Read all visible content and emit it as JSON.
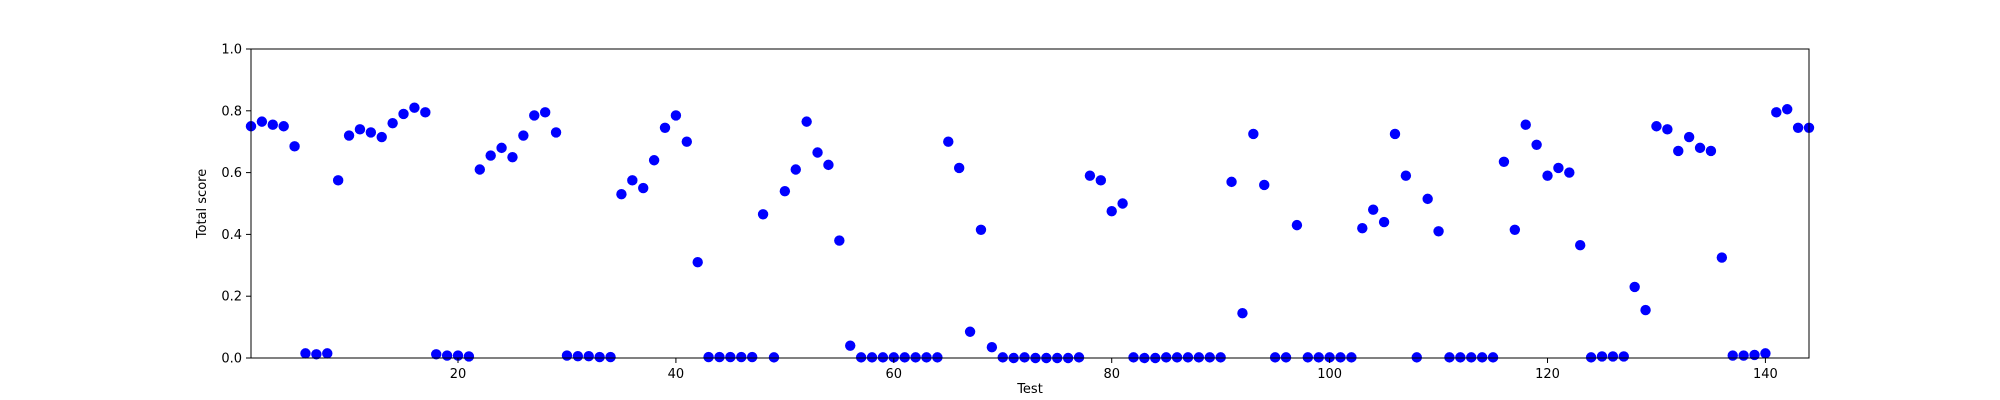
{
  "chart_data": {
    "type": "scatter",
    "title": "",
    "xlabel": "Test",
    "ylabel": "Total score",
    "xlim": [
      1,
      144
    ],
    "ylim": [
      0,
      1.0
    ],
    "xticks": [
      "20",
      "40",
      "60",
      "80",
      "100",
      "120",
      "140"
    ],
    "yticks": [
      "0.0",
      "0.2",
      "0.4",
      "0.6",
      "0.8",
      "1.0"
    ],
    "grid": false,
    "legend": "none",
    "marker_color": "#0000ff",
    "series": [
      {
        "x": [
          1,
          2,
          3,
          4,
          5,
          6,
          7,
          8,
          9,
          10,
          11,
          12,
          13,
          14,
          15,
          16,
          17,
          18,
          19,
          20,
          21,
          22,
          23,
          24,
          25,
          26,
          27,
          28,
          29,
          30,
          31,
          32,
          33,
          34,
          35,
          36,
          37,
          38,
          39,
          40,
          41,
          42,
          43,
          44,
          45,
          46,
          47,
          48,
          49,
          50,
          51,
          52,
          53,
          54,
          55,
          56,
          57,
          58,
          59,
          60,
          61,
          62,
          63,
          64,
          65,
          66,
          67,
          68,
          69,
          70,
          71,
          72,
          73,
          74,
          75,
          76,
          77,
          78,
          79,
          80,
          81,
          82,
          83,
          84,
          85,
          86,
          87,
          88,
          89,
          90,
          91,
          92,
          93,
          94,
          95,
          96,
          97,
          98,
          99,
          100,
          101,
          102,
          103,
          104,
          105,
          106,
          107,
          108,
          109,
          110,
          111,
          112,
          113,
          114,
          115,
          116,
          117,
          118,
          119,
          120,
          121,
          122,
          123,
          124,
          125,
          126,
          127,
          128,
          129,
          130,
          131,
          132,
          133,
          134,
          135,
          136,
          137,
          138,
          139,
          140,
          141,
          142,
          143,
          144
        ],
        "y": [
          0.75,
          0.765,
          0.755,
          0.75,
          0.685,
          0.015,
          0.012,
          0.015,
          0.575,
          0.72,
          0.74,
          0.73,
          0.715,
          0.76,
          0.79,
          0.81,
          0.795,
          0.012,
          0.008,
          0.008,
          0.005,
          0.61,
          0.655,
          0.68,
          0.65,
          0.72,
          0.785,
          0.795,
          0.73,
          0.008,
          0.006,
          0.006,
          0.003,
          0.003,
          0.53,
          0.575,
          0.55,
          0.64,
          0.745,
          0.785,
          0.7,
          0.31,
          0.003,
          0.003,
          0.003,
          0.003,
          0.003,
          0.465,
          0.002,
          0.54,
          0.61,
          0.765,
          0.665,
          0.625,
          0.38,
          0.04,
          0.002,
          0.002,
          0.002,
          0.002,
          0.002,
          0.002,
          0.002,
          0.002,
          0.7,
          0.615,
          0.085,
          0.415,
          0.035,
          0.002,
          0.0,
          0.002,
          0.0,
          0.0,
          0.0,
          0.0,
          0.002,
          0.59,
          0.575,
          0.475,
          0.5,
          0.002,
          0.0,
          0.0,
          0.002,
          0.002,
          0.002,
          0.002,
          0.002,
          0.002,
          0.57,
          0.145,
          0.725,
          0.56,
          0.002,
          0.002,
          0.43,
          0.002,
          0.002,
          0.002,
          0.002,
          0.002,
          0.42,
          0.48,
          0.44,
          0.725,
          0.59,
          0.002,
          0.515,
          0.41,
          0.002,
          0.002,
          0.002,
          0.002,
          0.002,
          0.635,
          0.415,
          0.755,
          0.69,
          0.59,
          0.615,
          0.6,
          0.365,
          0.002,
          0.005,
          0.005,
          0.005,
          0.23,
          0.155,
          0.75,
          0.74,
          0.67,
          0.715,
          0.68,
          0.67,
          0.325,
          0.008,
          0.008,
          0.01,
          0.015,
          0.795,
          0.805,
          0.745,
          0.745
        ]
      }
    ]
  }
}
